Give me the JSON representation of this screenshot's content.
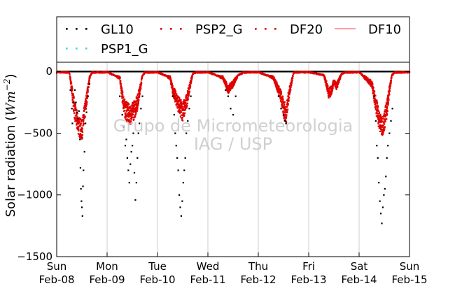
{
  "chart_data": {
    "type": "scatter",
    "ylabel_text": "Solar radiation (",
    "ylabel_unit": "Wm",
    "ylabel_exp": "−2",
    "ylabel_close": ")",
    "ylim": [
      -1500,
      75
    ],
    "yticks": [
      0,
      -500,
      -1000,
      -1500
    ],
    "ytick_labels": [
      "0",
      "−500",
      "−1000",
      "−1500"
    ],
    "xticks": [
      {
        "day": 0,
        "label1": "Sun",
        "label2": "Feb-08"
      },
      {
        "day": 1,
        "label1": "Mon",
        "label2": "Feb-09"
      },
      {
        "day": 2,
        "label1": "Tue",
        "label2": "Feb-10"
      },
      {
        "day": 3,
        "label1": "Wed",
        "label2": "Feb-11"
      },
      {
        "day": 4,
        "label1": "Thu",
        "label2": "Feb-12"
      },
      {
        "day": 5,
        "label1": "Fri",
        "label2": "Feb-13"
      },
      {
        "day": 6,
        "label1": "Sat",
        "label2": "Feb-14"
      },
      {
        "day": 7,
        "label1": "Sun",
        "label2": "Feb-15"
      }
    ],
    "grid_x": true,
    "zero_line": true,
    "watermark": [
      "Grupo de Micrometeorologia",
      "IAG / USP"
    ],
    "legend": {
      "placement": "top, above plot",
      "entries": [
        {
          "name": "GL10",
          "style": "dots",
          "color": "#000000"
        },
        {
          "name": "PSP2_G",
          "style": "dots",
          "color": "#e00000"
        },
        {
          "name": "DF20",
          "style": "dots",
          "color": "#e00000"
        },
        {
          "name": "DF10",
          "style": "line",
          "color": "#ff7f7f"
        },
        {
          "name": "PSP1_G",
          "style": "dots",
          "color": "#33dddd"
        }
      ]
    },
    "series": [
      {
        "name": "GL10",
        "color": "#000000",
        "points": [
          [
            0.27,
            -150
          ],
          [
            0.3,
            -300
          ],
          [
            0.31,
            -420
          ],
          [
            0.33,
            -250
          ],
          [
            0.36,
            -150
          ],
          [
            0.38,
            -250
          ],
          [
            0.4,
            -330
          ],
          [
            0.42,
            -380
          ],
          [
            0.44,
            -320
          ],
          [
            0.46,
            -550
          ],
          [
            0.47,
            -780
          ],
          [
            0.48,
            -950
          ],
          [
            0.49,
            -1050
          ],
          [
            0.5,
            -1100
          ],
          [
            0.51,
            -1170
          ],
          [
            0.52,
            -930
          ],
          [
            0.53,
            -800
          ],
          [
            0.55,
            -650
          ],
          [
            0.57,
            -420
          ],
          [
            0.59,
            -330
          ],
          [
            0.62,
            -200
          ],
          [
            0.65,
            -100
          ],
          [
            1.25,
            -200
          ],
          [
            1.3,
            -350
          ],
          [
            1.33,
            -450
          ],
          [
            1.36,
            -600
          ],
          [
            1.38,
            -550
          ],
          [
            1.4,
            -700
          ],
          [
            1.42,
            -800
          ],
          [
            1.44,
            -900
          ],
          [
            1.46,
            -750
          ],
          [
            1.48,
            -650
          ],
          [
            1.5,
            -600
          ],
          [
            1.52,
            -500
          ],
          [
            1.54,
            -820
          ],
          [
            1.56,
            -1040
          ],
          [
            1.58,
            -900
          ],
          [
            1.6,
            -700
          ],
          [
            1.62,
            -500
          ],
          [
            1.64,
            -420
          ],
          [
            1.67,
            -300
          ],
          [
            1.7,
            -200
          ],
          [
            2.3,
            -200
          ],
          [
            2.33,
            -350
          ],
          [
            2.35,
            -500
          ],
          [
            2.37,
            -600
          ],
          [
            2.39,
            -700
          ],
          [
            2.41,
            -800
          ],
          [
            2.43,
            -1000
          ],
          [
            2.45,
            -1100
          ],
          [
            2.47,
            -1170
          ],
          [
            2.49,
            -1050
          ],
          [
            2.51,
            -900
          ],
          [
            2.53,
            -800
          ],
          [
            2.55,
            -700
          ],
          [
            2.57,
            -500
          ],
          [
            2.6,
            -400
          ],
          [
            2.63,
            -300
          ],
          [
            2.66,
            -200
          ],
          [
            3.35,
            -150
          ],
          [
            3.4,
            -200
          ],
          [
            3.45,
            -300
          ],
          [
            3.5,
            -350
          ],
          [
            3.55,
            -200
          ],
          [
            4.4,
            -200
          ],
          [
            4.45,
            -300
          ],
          [
            4.5,
            -350
          ],
          [
            4.53,
            -400
          ],
          [
            4.55,
            -420
          ],
          [
            6.3,
            -200
          ],
          [
            6.33,
            -400
          ],
          [
            6.35,
            -600
          ],
          [
            6.37,
            -700
          ],
          [
            6.39,
            -900
          ],
          [
            6.41,
            -1050
          ],
          [
            6.43,
            -1150
          ],
          [
            6.45,
            -1230
          ],
          [
            6.47,
            -1100
          ],
          [
            6.49,
            -1000
          ],
          [
            6.51,
            -950
          ],
          [
            6.53,
            -850
          ],
          [
            6.55,
            -700
          ],
          [
            6.57,
            -600
          ],
          [
            6.6,
            -500
          ],
          [
            6.63,
            -400
          ],
          [
            6.66,
            -300
          ]
        ]
      },
      {
        "name": "PSP2_G",
        "color": "#e00000",
        "profile": [
          [
            0.0,
            -5
          ],
          [
            0.25,
            -8
          ],
          [
            0.3,
            -150
          ],
          [
            0.35,
            -300
          ],
          [
            0.4,
            -400
          ],
          [
            0.45,
            -450
          ],
          [
            0.5,
            -480
          ],
          [
            0.55,
            -350
          ],
          [
            0.6,
            -200
          ],
          [
            0.65,
            -50
          ],
          [
            0.7,
            -8
          ],
          [
            1.0,
            -5
          ],
          [
            1.25,
            -50
          ],
          [
            1.3,
            -200
          ],
          [
            1.35,
            -300
          ],
          [
            1.4,
            -330
          ],
          [
            1.45,
            -350
          ],
          [
            1.5,
            -330
          ],
          [
            1.55,
            -300
          ],
          [
            1.6,
            -250
          ],
          [
            1.65,
            -150
          ],
          [
            1.7,
            -30
          ],
          [
            1.75,
            -8
          ],
          [
            2.0,
            -5
          ],
          [
            2.25,
            -50
          ],
          [
            2.3,
            -150
          ],
          [
            2.35,
            -200
          ],
          [
            2.4,
            -250
          ],
          [
            2.45,
            -300
          ],
          [
            2.5,
            -320
          ],
          [
            2.55,
            -280
          ],
          [
            2.6,
            -200
          ],
          [
            2.65,
            -100
          ],
          [
            2.7,
            -20
          ],
          [
            2.75,
            -8
          ],
          [
            3.0,
            -5
          ],
          [
            3.3,
            -50
          ],
          [
            3.35,
            -100
          ],
          [
            3.4,
            -150
          ],
          [
            3.45,
            -120
          ],
          [
            3.5,
            -100
          ],
          [
            3.55,
            -60
          ],
          [
            3.6,
            -30
          ],
          [
            3.7,
            -8
          ],
          [
            4.0,
            -5
          ],
          [
            4.3,
            -50
          ],
          [
            4.35,
            -100
          ],
          [
            4.4,
            -150
          ],
          [
            4.45,
            -200
          ],
          [
            4.5,
            -300
          ],
          [
            4.55,
            -350
          ],
          [
            4.6,
            -200
          ],
          [
            4.65,
            -100
          ],
          [
            4.7,
            -8
          ],
          [
            5.0,
            -5
          ],
          [
            5.3,
            -30
          ],
          [
            5.35,
            -100
          ],
          [
            5.4,
            -180
          ],
          [
            5.45,
            -150
          ],
          [
            5.5,
            -80
          ],
          [
            5.55,
            -120
          ],
          [
            5.6,
            -70
          ],
          [
            5.65,
            -20
          ],
          [
            5.7,
            -8
          ],
          [
            6.0,
            -5
          ],
          [
            6.25,
            -100
          ],
          [
            6.3,
            -200
          ],
          [
            6.35,
            -300
          ],
          [
            6.4,
            -400
          ],
          [
            6.45,
            -450
          ],
          [
            6.5,
            -400
          ],
          [
            6.55,
            -300
          ],
          [
            6.6,
            -150
          ],
          [
            6.65,
            -30
          ],
          [
            6.7,
            -8
          ],
          [
            7.0,
            -5
          ]
        ]
      }
    ]
  }
}
